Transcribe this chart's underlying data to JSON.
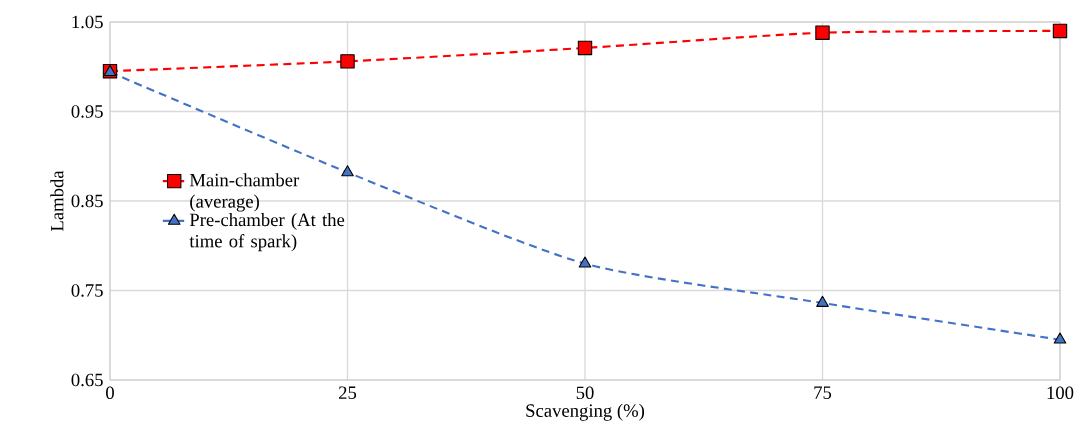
{
  "chart_data": {
    "type": "line",
    "xlabel": "Scavenging (%)",
    "ylabel": "Lambda",
    "x": [
      0,
      25,
      50,
      75,
      100
    ],
    "series": [
      {
        "name": "Main-chamber (average)",
        "color": "#ff0000",
        "marker": "square",
        "line_style": "dashed",
        "values": [
          0.995,
          1.006,
          1.021,
          1.038,
          1.04
        ]
      },
      {
        "name": "Pre-chamber (At the time of spark)",
        "color": "#4472c4",
        "marker": "triangle",
        "line_style": "dashed",
        "values": [
          0.994,
          0.882,
          0.78,
          0.736,
          0.695
        ]
      }
    ],
    "xlim": [
      0,
      100
    ],
    "xticks": [
      0,
      25,
      50,
      75,
      100
    ],
    "ylim": [
      0.65,
      1.05
    ],
    "yticks": [
      0.65,
      0.75,
      0.85,
      0.95,
      1.05
    ],
    "grid": true,
    "legend": "left"
  }
}
